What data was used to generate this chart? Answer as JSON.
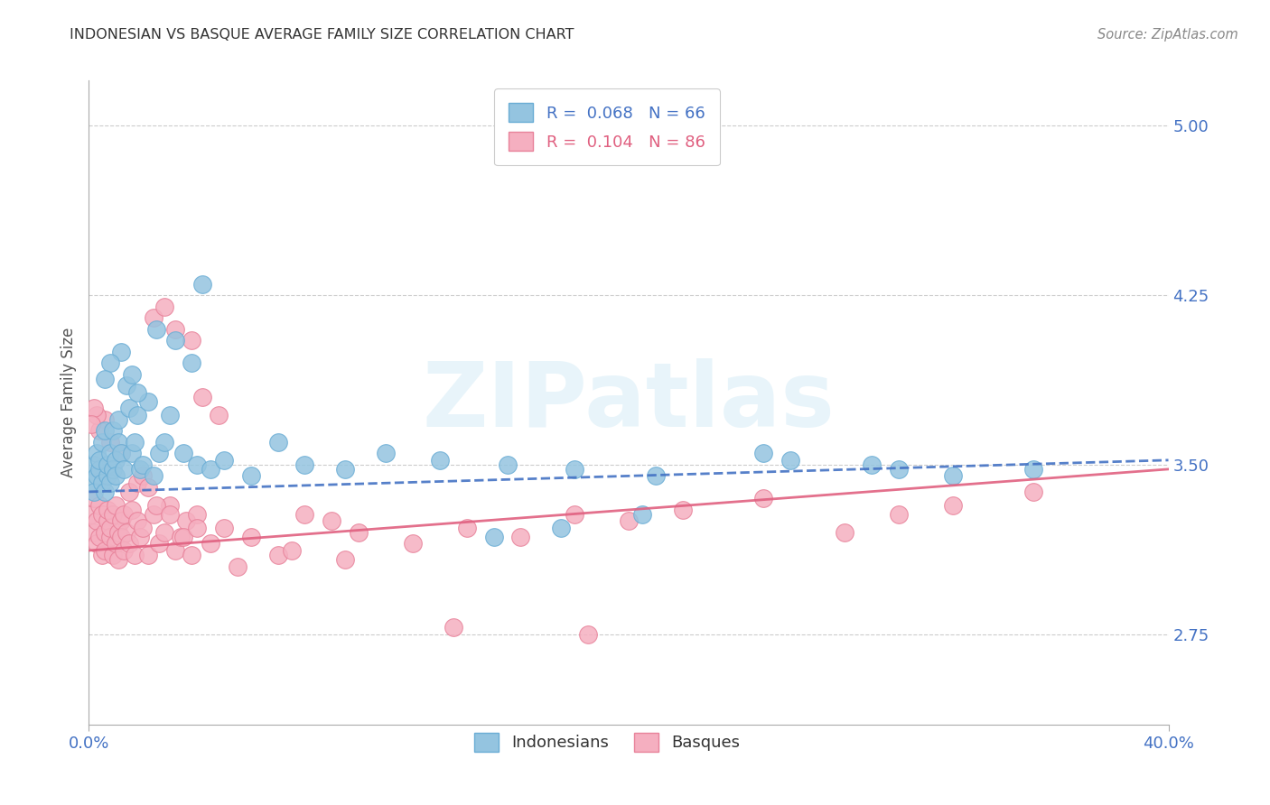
{
  "title": "INDONESIAN VS BASQUE AVERAGE FAMILY SIZE CORRELATION CHART",
  "source": "Source: ZipAtlas.com",
  "ylabel": "Average Family Size",
  "yticks": [
    2.75,
    3.5,
    4.25,
    5.0
  ],
  "xmin": 0.0,
  "xmax": 0.4,
  "ymin": 2.35,
  "ymax": 5.2,
  "watermark": "ZIPatlas",
  "indonesian_x": [
    0.001,
    0.002,
    0.002,
    0.003,
    0.003,
    0.004,
    0.004,
    0.005,
    0.005,
    0.006,
    0.006,
    0.007,
    0.007,
    0.008,
    0.008,
    0.009,
    0.009,
    0.01,
    0.01,
    0.011,
    0.011,
    0.012,
    0.013,
    0.014,
    0.015,
    0.016,
    0.017,
    0.018,
    0.019,
    0.02,
    0.022,
    0.024,
    0.026,
    0.028,
    0.03,
    0.035,
    0.04,
    0.045,
    0.05,
    0.06,
    0.07,
    0.08,
    0.095,
    0.11,
    0.13,
    0.155,
    0.18,
    0.21,
    0.25,
    0.29,
    0.32,
    0.35,
    0.175,
    0.205,
    0.15,
    0.26,
    0.3,
    0.025,
    0.032,
    0.038,
    0.042,
    0.018,
    0.016,
    0.012,
    0.008,
    0.006
  ],
  "indonesian_y": [
    3.42,
    3.38,
    3.5,
    3.45,
    3.55,
    3.48,
    3.52,
    3.42,
    3.6,
    3.38,
    3.65,
    3.45,
    3.5,
    3.55,
    3.42,
    3.48,
    3.65,
    3.52,
    3.45,
    3.6,
    3.7,
    3.55,
    3.48,
    3.85,
    3.75,
    3.55,
    3.6,
    3.72,
    3.48,
    3.5,
    3.78,
    3.45,
    3.55,
    3.6,
    3.72,
    3.55,
    3.5,
    3.48,
    3.52,
    3.45,
    3.6,
    3.5,
    3.48,
    3.55,
    3.52,
    3.5,
    3.48,
    3.45,
    3.55,
    3.5,
    3.45,
    3.48,
    3.22,
    3.28,
    3.18,
    3.52,
    3.48,
    4.1,
    4.05,
    3.95,
    4.3,
    3.82,
    3.9,
    4.0,
    3.95,
    3.88
  ],
  "basque_x": [
    0.001,
    0.002,
    0.002,
    0.003,
    0.003,
    0.004,
    0.004,
    0.005,
    0.005,
    0.006,
    0.006,
    0.007,
    0.007,
    0.008,
    0.008,
    0.009,
    0.009,
    0.01,
    0.01,
    0.011,
    0.011,
    0.012,
    0.012,
    0.013,
    0.013,
    0.014,
    0.015,
    0.016,
    0.017,
    0.018,
    0.019,
    0.02,
    0.022,
    0.024,
    0.026,
    0.028,
    0.03,
    0.032,
    0.034,
    0.036,
    0.038,
    0.04,
    0.045,
    0.05,
    0.06,
    0.07,
    0.08,
    0.09,
    0.1,
    0.12,
    0.14,
    0.16,
    0.18,
    0.2,
    0.22,
    0.25,
    0.28,
    0.3,
    0.32,
    0.35,
    0.135,
    0.185,
    0.055,
    0.075,
    0.095,
    0.025,
    0.03,
    0.035,
    0.04,
    0.012,
    0.008,
    0.006,
    0.004,
    0.003,
    0.002,
    0.001,
    0.015,
    0.018,
    0.02,
    0.022,
    0.024,
    0.028,
    0.032,
    0.038,
    0.042,
    0.048
  ],
  "basque_y": [
    3.28,
    3.2,
    3.35,
    3.25,
    3.15,
    3.32,
    3.18,
    3.1,
    3.28,
    3.2,
    3.12,
    3.25,
    3.3,
    3.18,
    3.22,
    3.1,
    3.28,
    3.15,
    3.32,
    3.2,
    3.08,
    3.25,
    3.18,
    3.12,
    3.28,
    3.2,
    3.15,
    3.3,
    3.1,
    3.25,
    3.18,
    3.22,
    3.1,
    3.28,
    3.15,
    3.2,
    3.32,
    3.12,
    3.18,
    3.25,
    3.1,
    3.28,
    3.15,
    3.22,
    3.18,
    3.1,
    3.28,
    3.25,
    3.2,
    3.15,
    3.22,
    3.18,
    3.28,
    3.25,
    3.3,
    3.35,
    3.2,
    3.28,
    3.32,
    3.38,
    2.78,
    2.75,
    3.05,
    3.12,
    3.08,
    3.32,
    3.28,
    3.18,
    3.22,
    3.55,
    3.6,
    3.7,
    3.65,
    3.72,
    3.75,
    3.68,
    3.38,
    3.42,
    3.45,
    3.4,
    4.15,
    4.2,
    4.1,
    4.05,
    3.8,
    3.72
  ],
  "indonesian_color": "#94c4e0",
  "indonesian_edge": "#6aadd5",
  "basque_color": "#f5afc0",
  "basque_edge": "#e8829a",
  "blue_line_color": "#4472c4",
  "pink_line_color": "#e06080",
  "indo_line_x0": 0.0,
  "indo_line_x1": 0.4,
  "indo_line_y0": 3.38,
  "indo_line_y1": 3.52,
  "basq_line_x0": 0.0,
  "basq_line_x1": 0.4,
  "basq_line_y0": 3.12,
  "basq_line_y1": 3.48,
  "grid_color": "#cccccc",
  "background_color": "#ffffff",
  "title_color": "#333333",
  "ytick_label_color": "#4472c4",
  "xtick_label_color": "#4472c4"
}
